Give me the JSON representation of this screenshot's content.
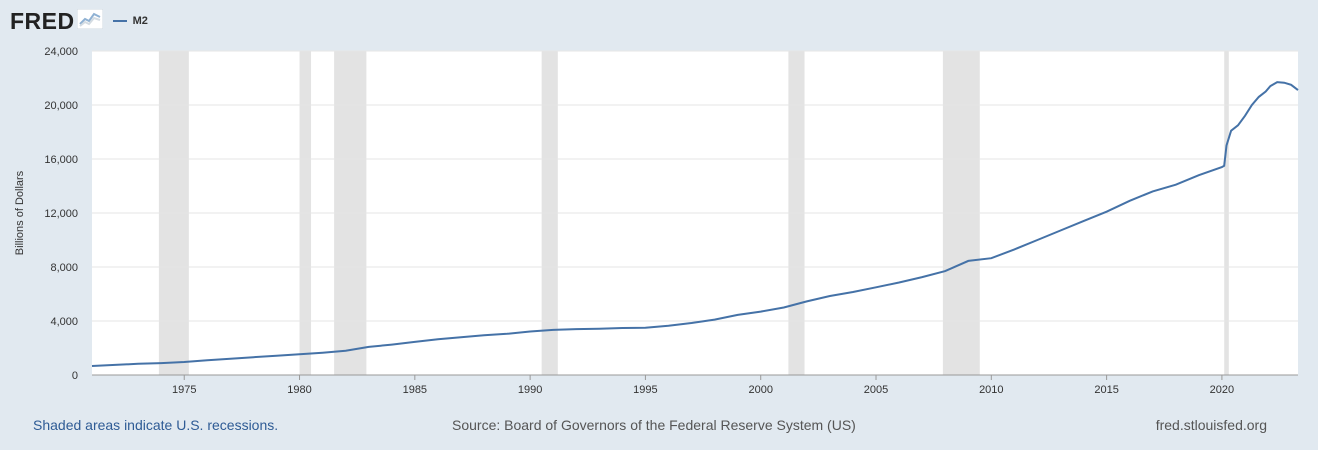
{
  "brand": {
    "logo_text": "FRED",
    "logo_icon": "chart-line-icon"
  },
  "footer": {
    "recessions_note": "Shaded areas indicate U.S. recessions.",
    "source": "Source: Board of Governors of the Federal Reserve System (US)",
    "site": "fred.stlouisfed.org"
  },
  "colors": {
    "line": "#4572a7",
    "recession": "#e3e3e3",
    "background": "#e1e9f0",
    "plot": "#ffffff"
  },
  "chart_data": {
    "type": "line",
    "title": "",
    "xlabel": "",
    "ylabel": "Billions of Dollars",
    "xlim": [
      1971.0,
      2023.3
    ],
    "ylim": [
      0,
      24000
    ],
    "yticks": [
      0,
      4000,
      8000,
      12000,
      16000,
      20000,
      24000
    ],
    "ytick_labels": [
      "0",
      "4,000",
      "8,000",
      "12,000",
      "16,000",
      "20,000",
      "24,000"
    ],
    "xticks": [
      1975,
      1980,
      1985,
      1990,
      1995,
      2000,
      2005,
      2010,
      2015,
      2020
    ],
    "xtick_labels": [
      "1975",
      "1980",
      "1985",
      "1990",
      "1995",
      "2000",
      "2005",
      "2010",
      "2015",
      "2020"
    ],
    "grid": true,
    "legend_position": "top-left",
    "recessions": [
      [
        1973.9,
        1975.2
      ],
      [
        1980.0,
        1980.5
      ],
      [
        1981.5,
        1982.9
      ],
      [
        1990.5,
        1991.2
      ],
      [
        2001.2,
        2001.9
      ],
      [
        2007.9,
        2009.5
      ],
      [
        2020.1,
        2020.3
      ]
    ],
    "series": [
      {
        "name": "M2",
        "x": [
          1971,
          1972,
          1973,
          1974,
          1975,
          1976,
          1977,
          1978,
          1979,
          1980,
          1981,
          1982,
          1983,
          1984,
          1985,
          1986,
          1987,
          1988,
          1989,
          1990,
          1991,
          1992,
          1993,
          1994,
          1995,
          1996,
          1997,
          1998,
          1999,
          2000,
          2001,
          2002,
          2003,
          2004,
          2005,
          2006,
          2007,
          2008,
          2009,
          2010,
          2011,
          2012,
          2013,
          2014,
          2015,
          2016,
          2017,
          2018,
          2019,
          2020.0,
          2020.1,
          2020.2,
          2020.4,
          2020.7,
          2021.0,
          2021.3,
          2021.6,
          2021.9,
          2022.1,
          2022.4,
          2022.7,
          2023.0,
          2023.3
        ],
        "values": [
          670,
          750,
          830,
          880,
          960,
          1090,
          1210,
          1320,
          1420,
          1530,
          1650,
          1800,
          2080,
          2250,
          2450,
          2650,
          2790,
          2940,
          3050,
          3220,
          3340,
          3400,
          3430,
          3480,
          3500,
          3650,
          3850,
          4100,
          4450,
          4700,
          5000,
          5450,
          5850,
          6150,
          6500,
          6850,
          7250,
          7700,
          8450,
          8650,
          9300,
          10000,
          10700,
          11400,
          12100,
          12900,
          13600,
          14100,
          14800,
          15400,
          15500,
          17000,
          18100,
          18500,
          19200,
          20000,
          20600,
          21000,
          21400,
          21700,
          21650,
          21500,
          21100
        ]
      }
    ]
  }
}
